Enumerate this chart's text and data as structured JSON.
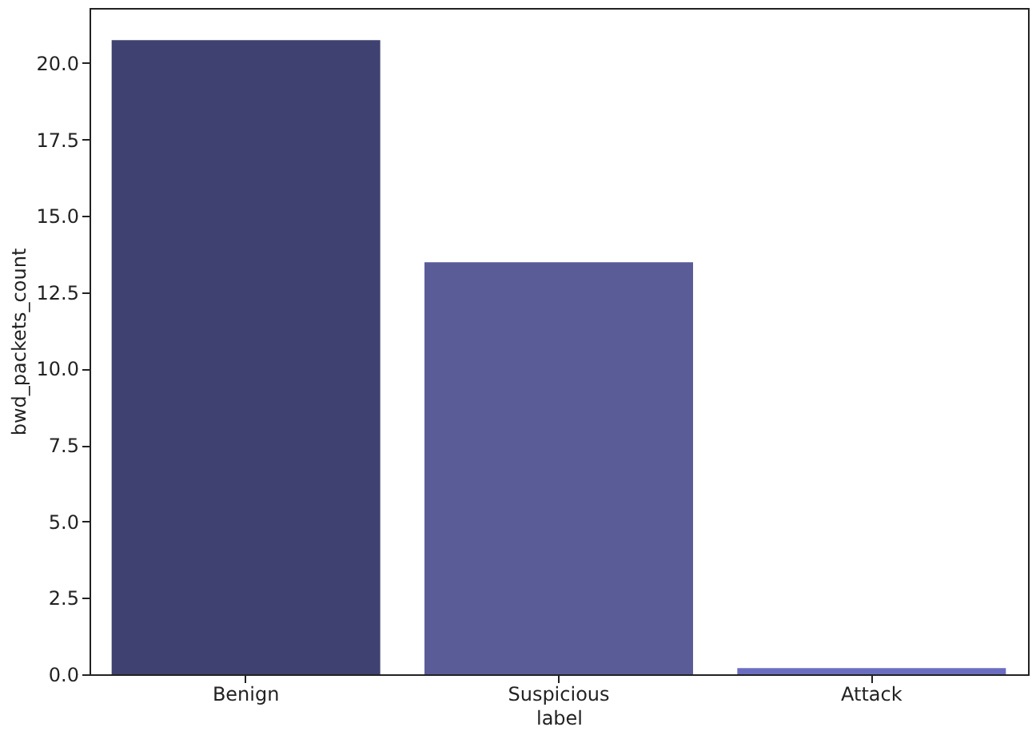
{
  "chart_data": {
    "type": "bar",
    "xlabel": "label",
    "ylabel": "bwd_packets_count",
    "categories": [
      "Benign",
      "Suspicious",
      "Attack"
    ],
    "values": [
      20.75,
      13.48,
      0.2
    ],
    "colors": [
      "#3f4170",
      "#5a5c98",
      "#6b6ec0"
    ],
    "ylim": [
      0,
      21.8
    ],
    "yticks": [
      {
        "value": 0,
        "label": "0.0"
      },
      2.5,
      {
        "value": 5,
        "label": "5.0"
      },
      7.5,
      {
        "value": 10,
        "label": "10.0"
      },
      12.5,
      {
        "value": 15,
        "label": "15.0"
      },
      17.5,
      {
        "value": 20,
        "label": "20.0"
      }
    ],
    "grid": false
  }
}
